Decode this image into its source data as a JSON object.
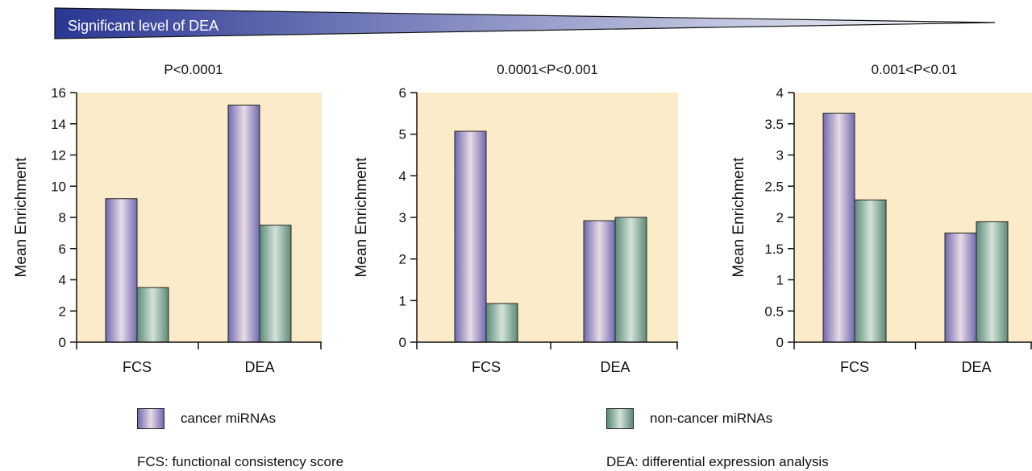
{
  "banner": {
    "label": "Significant level of DEA",
    "colors": [
      "#2a3794",
      "#ffffff"
    ]
  },
  "legend": [
    {
      "name": "cancer miRNAs",
      "color": "#9a95c8"
    },
    {
      "name": "non-cancer miRNAs",
      "color": "#7fa796"
    }
  ],
  "footnotes": {
    "fcs": "FCS: functional consistency score",
    "dea": "DEA: differential expression analysis"
  },
  "colors": {
    "plot_background": "#fcebc8",
    "cancer_edge": "#6f6ab0",
    "cancer_mid": "#e9dbe6",
    "noncancer_edge": "#5c8a77",
    "noncancer_mid": "#d4e3da"
  },
  "chart_data": [
    {
      "type": "bar",
      "title": "P<0.0001",
      "ylabel": "Mean Enrichment",
      "categories": [
        "FCS",
        "DEA"
      ],
      "ylim": [
        0,
        16
      ],
      "yticks": [
        "0",
        "2",
        "4",
        "6",
        "8",
        "10",
        "12",
        "14",
        "16"
      ],
      "series": [
        {
          "name": "cancer miRNAs",
          "values": [
            9.2,
            15.2
          ]
        },
        {
          "name": "non-cancer miRNAs",
          "values": [
            3.5,
            7.5
          ]
        }
      ]
    },
    {
      "type": "bar",
      "title": "0.0001<P<0.001",
      "ylabel": "Mean Enrichment",
      "categories": [
        "FCS",
        "DEA"
      ],
      "ylim": [
        0,
        6
      ],
      "yticks": [
        "0",
        "1",
        "2",
        "3",
        "4",
        "5",
        "6"
      ],
      "series": [
        {
          "name": "cancer miRNAs",
          "values": [
            5.07,
            2.92
          ]
        },
        {
          "name": "non-cancer miRNAs",
          "values": [
            0.93,
            3.0
          ]
        }
      ]
    },
    {
      "type": "bar",
      "title": "0.001<P<0.01",
      "ylabel": "Mean Enrichment",
      "categories": [
        "FCS",
        "DEA"
      ],
      "ylim": [
        0,
        4
      ],
      "yticks": [
        "0",
        "0.5",
        "1",
        "1.5",
        "2",
        "2.5",
        "3",
        "3.5",
        "4"
      ],
      "series": [
        {
          "name": "cancer miRNAs",
          "values": [
            3.67,
            1.75
          ]
        },
        {
          "name": "non-cancer miRNAs",
          "values": [
            2.28,
            1.93
          ]
        }
      ]
    }
  ]
}
